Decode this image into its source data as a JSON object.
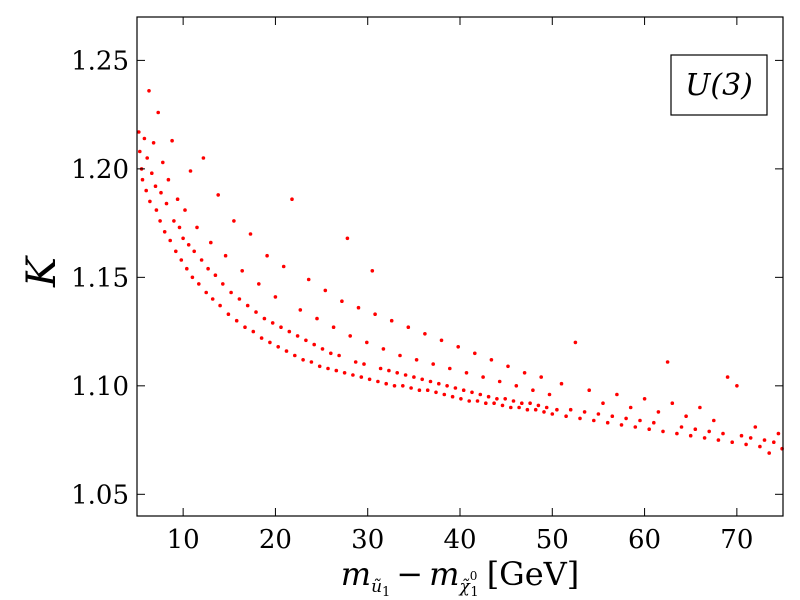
{
  "chart_data": {
    "type": "scatter",
    "title": "",
    "legend": {
      "label": "U(3)",
      "placement": "top-right"
    },
    "xlabel": {
      "m": "m",
      "sub1": "ũ",
      "sub1b": "1",
      "minus": "−",
      "sub2": "χ̃",
      "sup2": "0",
      "sub2b": "1",
      "unit": "[GeV]"
    },
    "ylabel": "K",
    "xlim": [
      5,
      75
    ],
    "ylim": [
      1.04,
      1.27
    ],
    "xticks": [
      10,
      20,
      30,
      40,
      50,
      60,
      70
    ],
    "xtick_labels": [
      "10",
      "20",
      "30",
      "40",
      "50",
      "60",
      "70"
    ],
    "yticks": [
      1.05,
      1.1,
      1.15,
      1.2,
      1.25
    ],
    "ytick_labels": [
      "1.05",
      "1.10",
      "1.15",
      "1.20",
      "1.25"
    ],
    "series": [
      {
        "name": "U(3)",
        "color": "#ff0000",
        "points": [
          [
            5.2,
            1.217
          ],
          [
            5.3,
            1.208
          ],
          [
            5.5,
            1.2
          ],
          [
            5.6,
            1.195
          ],
          [
            5.8,
            1.214
          ],
          [
            6.0,
            1.19
          ],
          [
            6.1,
            1.205
          ],
          [
            6.3,
            1.236
          ],
          [
            6.4,
            1.185
          ],
          [
            6.6,
            1.198
          ],
          [
            6.8,
            1.212
          ],
          [
            7.0,
            1.192
          ],
          [
            7.1,
            1.181
          ],
          [
            7.3,
            1.226
          ],
          [
            7.5,
            1.176
          ],
          [
            7.6,
            1.189
          ],
          [
            7.8,
            1.203
          ],
          [
            8.0,
            1.171
          ],
          [
            8.2,
            1.184
          ],
          [
            8.4,
            1.195
          ],
          [
            8.6,
            1.167
          ],
          [
            8.8,
            1.213
          ],
          [
            9.0,
            1.176
          ],
          [
            9.2,
            1.162
          ],
          [
            9.4,
            1.186
          ],
          [
            9.6,
            1.173
          ],
          [
            9.8,
            1.158
          ],
          [
            10.0,
            1.168
          ],
          [
            10.2,
            1.181
          ],
          [
            10.4,
            1.154
          ],
          [
            10.6,
            1.165
          ],
          [
            10.8,
            1.199
          ],
          [
            11.0,
            1.15
          ],
          [
            11.2,
            1.162
          ],
          [
            11.5,
            1.173
          ],
          [
            11.7,
            1.147
          ],
          [
            12.0,
            1.158
          ],
          [
            12.2,
            1.205
          ],
          [
            12.5,
            1.143
          ],
          [
            12.7,
            1.154
          ],
          [
            13.0,
            1.166
          ],
          [
            13.2,
            1.14
          ],
          [
            13.5,
            1.151
          ],
          [
            13.8,
            1.188
          ],
          [
            14.0,
            1.137
          ],
          [
            14.3,
            1.147
          ],
          [
            14.6,
            1.16
          ],
          [
            14.9,
            1.133
          ],
          [
            15.2,
            1.143
          ],
          [
            15.5,
            1.176
          ],
          [
            15.8,
            1.13
          ],
          [
            16.1,
            1.14
          ],
          [
            16.4,
            1.153
          ],
          [
            16.7,
            1.127
          ],
          [
            17.0,
            1.137
          ],
          [
            17.3,
            1.17
          ],
          [
            17.6,
            1.125
          ],
          [
            17.9,
            1.134
          ],
          [
            18.2,
            1.147
          ],
          [
            18.5,
            1.122
          ],
          [
            18.8,
            1.131
          ],
          [
            19.1,
            1.16
          ],
          [
            19.4,
            1.12
          ],
          [
            19.7,
            1.129
          ],
          [
            20.0,
            1.141
          ],
          [
            20.3,
            1.118
          ],
          [
            20.6,
            1.127
          ],
          [
            20.9,
            1.155
          ],
          [
            21.2,
            1.116
          ],
          [
            21.5,
            1.125
          ],
          [
            21.8,
            1.186
          ],
          [
            22.1,
            1.114
          ],
          [
            22.4,
            1.123
          ],
          [
            22.7,
            1.135
          ],
          [
            23.0,
            1.112
          ],
          [
            23.3,
            1.121
          ],
          [
            23.6,
            1.149
          ],
          [
            23.9,
            1.111
          ],
          [
            24.2,
            1.119
          ],
          [
            24.5,
            1.131
          ],
          [
            24.8,
            1.109
          ],
          [
            25.1,
            1.117
          ],
          [
            25.4,
            1.144
          ],
          [
            25.7,
            1.108
          ],
          [
            26.0,
            1.115
          ],
          [
            26.3,
            1.127
          ],
          [
            26.6,
            1.107
          ],
          [
            26.9,
            1.114
          ],
          [
            27.2,
            1.139
          ],
          [
            27.5,
            1.106
          ],
          [
            27.8,
            1.168
          ],
          [
            28.1,
            1.123
          ],
          [
            28.4,
            1.105
          ],
          [
            28.7,
            1.111
          ],
          [
            29.0,
            1.136
          ],
          [
            29.3,
            1.104
          ],
          [
            29.6,
            1.11
          ],
          [
            29.9,
            1.12
          ],
          [
            30.2,
            1.103
          ],
          [
            30.5,
            1.153
          ],
          [
            30.8,
            1.133
          ],
          [
            31.1,
            1.102
          ],
          [
            31.4,
            1.108
          ],
          [
            31.7,
            1.117
          ],
          [
            32.0,
            1.101
          ],
          [
            32.3,
            1.107
          ],
          [
            32.6,
            1.13
          ],
          [
            32.9,
            1.1
          ],
          [
            33.2,
            1.106
          ],
          [
            33.5,
            1.114
          ],
          [
            33.8,
            1.1
          ],
          [
            34.1,
            1.105
          ],
          [
            34.4,
            1.127
          ],
          [
            34.7,
            1.099
          ],
          [
            35.0,
            1.104
          ],
          [
            35.3,
            1.112
          ],
          [
            35.6,
            1.098
          ],
          [
            35.9,
            1.103
          ],
          [
            36.2,
            1.124
          ],
          [
            36.5,
            1.098
          ],
          [
            36.8,
            1.102
          ],
          [
            37.1,
            1.11
          ],
          [
            37.4,
            1.097
          ],
          [
            37.7,
            1.101
          ],
          [
            38.0,
            1.121
          ],
          [
            38.3,
            1.096
          ],
          [
            38.6,
            1.1
          ],
          [
            38.9,
            1.108
          ],
          [
            39.2,
            1.095
          ],
          [
            39.5,
            1.099
          ],
          [
            39.8,
            1.118
          ],
          [
            40.1,
            1.094
          ],
          [
            40.4,
            1.098
          ],
          [
            40.7,
            1.106
          ],
          [
            41.0,
            1.093
          ],
          [
            41.3,
            1.097
          ],
          [
            41.6,
            1.115
          ],
          [
            41.9,
            1.093
          ],
          [
            42.2,
            1.096
          ],
          [
            42.5,
            1.104
          ],
          [
            42.8,
            1.092
          ],
          [
            43.1,
            1.095
          ],
          [
            43.4,
            1.112
          ],
          [
            43.7,
            1.092
          ],
          [
            44.0,
            1.094
          ],
          [
            44.3,
            1.102
          ],
          [
            44.6,
            1.091
          ],
          [
            44.9,
            1.094
          ],
          [
            45.2,
            1.109
          ],
          [
            45.5,
            1.09
          ],
          [
            45.8,
            1.093
          ],
          [
            46.1,
            1.1
          ],
          [
            46.4,
            1.09
          ],
          [
            46.7,
            1.092
          ],
          [
            47.0,
            1.106
          ],
          [
            47.3,
            1.089
          ],
          [
            47.6,
            1.092
          ],
          [
            47.9,
            1.098
          ],
          [
            48.2,
            1.089
          ],
          [
            48.5,
            1.091
          ],
          [
            48.8,
            1.104
          ],
          [
            49.1,
            1.088
          ],
          [
            49.4,
            1.09
          ],
          [
            49.7,
            1.096
          ],
          [
            50.0,
            1.087
          ],
          [
            50.5,
            1.089
          ],
          [
            51.0,
            1.101
          ],
          [
            51.5,
            1.086
          ],
          [
            52.0,
            1.089
          ],
          [
            52.5,
            1.12
          ],
          [
            53.0,
            1.085
          ],
          [
            53.5,
            1.088
          ],
          [
            54.0,
            1.098
          ],
          [
            54.5,
            1.084
          ],
          [
            55.0,
            1.087
          ],
          [
            55.5,
            1.092
          ],
          [
            56.0,
            1.083
          ],
          [
            56.5,
            1.086
          ],
          [
            57.0,
            1.096
          ],
          [
            57.5,
            1.082
          ],
          [
            58.0,
            1.085
          ],
          [
            58.5,
            1.09
          ],
          [
            59.0,
            1.081
          ],
          [
            59.5,
            1.084
          ],
          [
            60.0,
            1.094
          ],
          [
            60.5,
            1.08
          ],
          [
            61.0,
            1.083
          ],
          [
            61.5,
            1.088
          ],
          [
            62.0,
            1.079
          ],
          [
            62.5,
            1.111
          ],
          [
            63.0,
            1.092
          ],
          [
            63.5,
            1.078
          ],
          [
            64.0,
            1.081
          ],
          [
            64.5,
            1.086
          ],
          [
            65.0,
            1.077
          ],
          [
            65.5,
            1.08
          ],
          [
            66.0,
            1.09
          ],
          [
            66.5,
            1.076
          ],
          [
            67.0,
            1.079
          ],
          [
            67.5,
            1.084
          ],
          [
            68.0,
            1.075
          ],
          [
            68.5,
            1.078
          ],
          [
            69.0,
            1.104
          ],
          [
            69.5,
            1.074
          ],
          [
            70.0,
            1.1
          ],
          [
            70.5,
            1.077
          ],
          [
            71.0,
            1.073
          ],
          [
            71.5,
            1.076
          ],
          [
            72.0,
            1.081
          ],
          [
            72.5,
            1.072
          ],
          [
            73.0,
            1.075
          ],
          [
            73.5,
            1.069
          ],
          [
            74.0,
            1.074
          ],
          [
            74.5,
            1.078
          ],
          [
            74.9,
            1.071
          ]
        ]
      }
    ]
  }
}
